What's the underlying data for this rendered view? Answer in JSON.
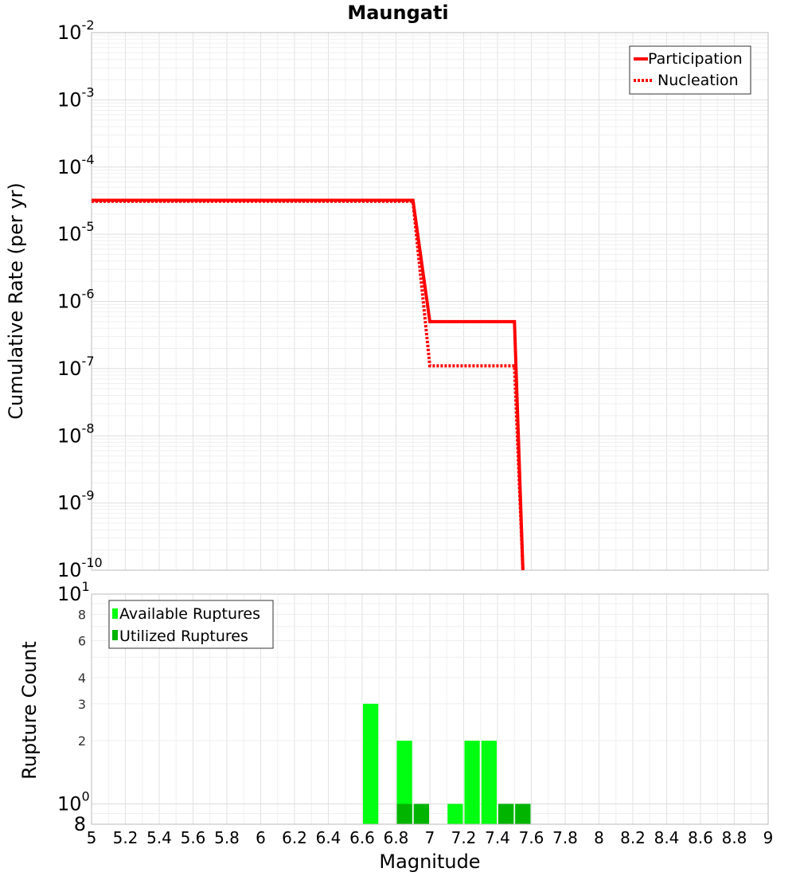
{
  "chart_data": [
    {
      "type": "line",
      "title": "Maungati",
      "xlabel": "",
      "ylabel": "Cumulative Rate (per yr)",
      "xlim": [
        5,
        9
      ],
      "ylim": [
        1e-10,
        0.01
      ],
      "yscale": "log",
      "grid": true,
      "legend_position": "top-right",
      "y_ticks": [
        {
          "base": "10",
          "exp": "-10"
        },
        {
          "base": "10",
          "exp": "-9"
        },
        {
          "base": "10",
          "exp": "-8"
        },
        {
          "base": "10",
          "exp": "-7"
        },
        {
          "base": "10",
          "exp": "-6"
        },
        {
          "base": "10",
          "exp": "-5"
        },
        {
          "base": "10",
          "exp": "-4"
        },
        {
          "base": "10",
          "exp": "-3"
        },
        {
          "base": "10",
          "exp": "-2"
        }
      ],
      "series": [
        {
          "name": "Participation",
          "color": "#ff0000",
          "style": "solid",
          "x": [
            5.0,
            6.9,
            7.0,
            7.5,
            7.55
          ],
          "y": [
            3.2e-05,
            3.2e-05,
            5e-07,
            5e-07,
            1e-10
          ]
        },
        {
          "name": "Nucleation",
          "color": "#ff0000",
          "style": "dotted",
          "x": [
            5.0,
            6.9,
            7.0,
            7.5,
            7.55
          ],
          "y": [
            3.1e-05,
            3.1e-05,
            1.1e-07,
            1.1e-07,
            1e-10
          ]
        }
      ]
    },
    {
      "type": "bar",
      "xlabel": "Magnitude",
      "ylabel": "Rupture Count",
      "xlim": [
        5,
        9
      ],
      "ylim": [
        0.8,
        10
      ],
      "yscale": "log",
      "grid": true,
      "legend_position": "top-left",
      "bin_width": 0.1,
      "x_ticks": [
        "5",
        "5.2",
        "5.4",
        "5.6",
        "5.8",
        "6",
        "6.2",
        "6.4",
        "6.6",
        "6.8",
        "7",
        "7.2",
        "7.4",
        "7.6",
        "7.8",
        "8",
        "8.2",
        "8.4",
        "8.6",
        "8.8",
        "9"
      ],
      "y_tick_labels": {
        "main": [
          {
            "base": "10",
            "exp": "0"
          },
          {
            "base": "10",
            "exp": "1"
          }
        ],
        "minor": [
          "8",
          "2",
          "3",
          "4",
          "6",
          "8"
        ]
      },
      "series": [
        {
          "name": "Available Ruptures",
          "color": "#00ff10",
          "x": [
            6.65,
            6.85,
            7.15,
            7.25,
            7.35,
            7.45,
            7.55
          ],
          "values": [
            3,
            2,
            1,
            2,
            2,
            1,
            1
          ]
        },
        {
          "name": "Utilized Ruptures",
          "color": "#00b400",
          "x": [
            6.85,
            6.95,
            7.45,
            7.55
          ],
          "values": [
            1,
            1,
            1,
            1
          ]
        }
      ]
    }
  ]
}
